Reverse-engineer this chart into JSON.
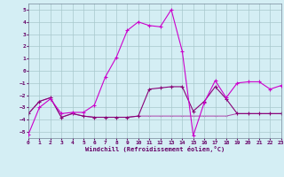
{
  "xlabel": "Windchill (Refroidissement éolien,°C)",
  "xlim": [
    0,
    23
  ],
  "ylim": [
    -5.5,
    5.5
  ],
  "yticks": [
    -5,
    -4,
    -3,
    -2,
    -1,
    0,
    1,
    2,
    3,
    4,
    5
  ],
  "xticks": [
    0,
    1,
    2,
    3,
    4,
    5,
    6,
    7,
    8,
    9,
    10,
    11,
    12,
    13,
    14,
    15,
    16,
    17,
    18,
    19,
    20,
    21,
    22,
    23
  ],
  "bg_color": "#d4eef4",
  "grid_color": "#a8c8cc",
  "c1": "#cc00cc",
  "c2": "#880077",
  "c3": "#aa44aa",
  "s1_x": [
    0,
    1,
    2,
    3,
    4,
    5,
    6,
    7,
    8,
    9,
    10,
    11,
    12,
    13,
    14,
    15,
    16,
    17,
    18,
    19,
    20,
    21,
    22,
    23
  ],
  "s1_y": [
    -5.2,
    -3.0,
    -2.3,
    -3.5,
    -3.4,
    -3.4,
    -2.8,
    -0.5,
    1.1,
    3.3,
    4.0,
    3.7,
    3.6,
    5.0,
    1.6,
    -5.3,
    -2.6,
    -0.8,
    -2.2,
    -1.0,
    -0.9,
    -0.9,
    -1.5,
    -1.2
  ],
  "s2_x": [
    0,
    1,
    2,
    3,
    4,
    5,
    6,
    7,
    8,
    9,
    10,
    11,
    12,
    13,
    14,
    15,
    16,
    17,
    18,
    19,
    20,
    21,
    22,
    23
  ],
  "s2_y": [
    -3.5,
    -2.5,
    -2.2,
    -3.8,
    -3.5,
    -3.7,
    -3.8,
    -3.8,
    -3.8,
    -3.8,
    -3.7,
    -1.5,
    -1.4,
    -1.3,
    -1.3,
    -3.3,
    -2.5,
    -1.3,
    -2.3,
    -3.5,
    -3.5,
    -3.5,
    -3.5,
    -3.5
  ],
  "s3_x": [
    0,
    1,
    2,
    3,
    4,
    5,
    6,
    7,
    8,
    9,
    10,
    11,
    12,
    13,
    14,
    15,
    16,
    17,
    18,
    19,
    20,
    21,
    22,
    23
  ],
  "s3_y": [
    -3.5,
    -2.5,
    -2.2,
    -3.8,
    -3.5,
    -3.7,
    -3.8,
    -3.8,
    -3.8,
    -3.8,
    -3.7,
    -3.7,
    -3.7,
    -3.7,
    -3.7,
    -3.7,
    -3.7,
    -3.7,
    -3.7,
    -3.5,
    -3.5,
    -3.5,
    -3.5,
    -3.5
  ]
}
